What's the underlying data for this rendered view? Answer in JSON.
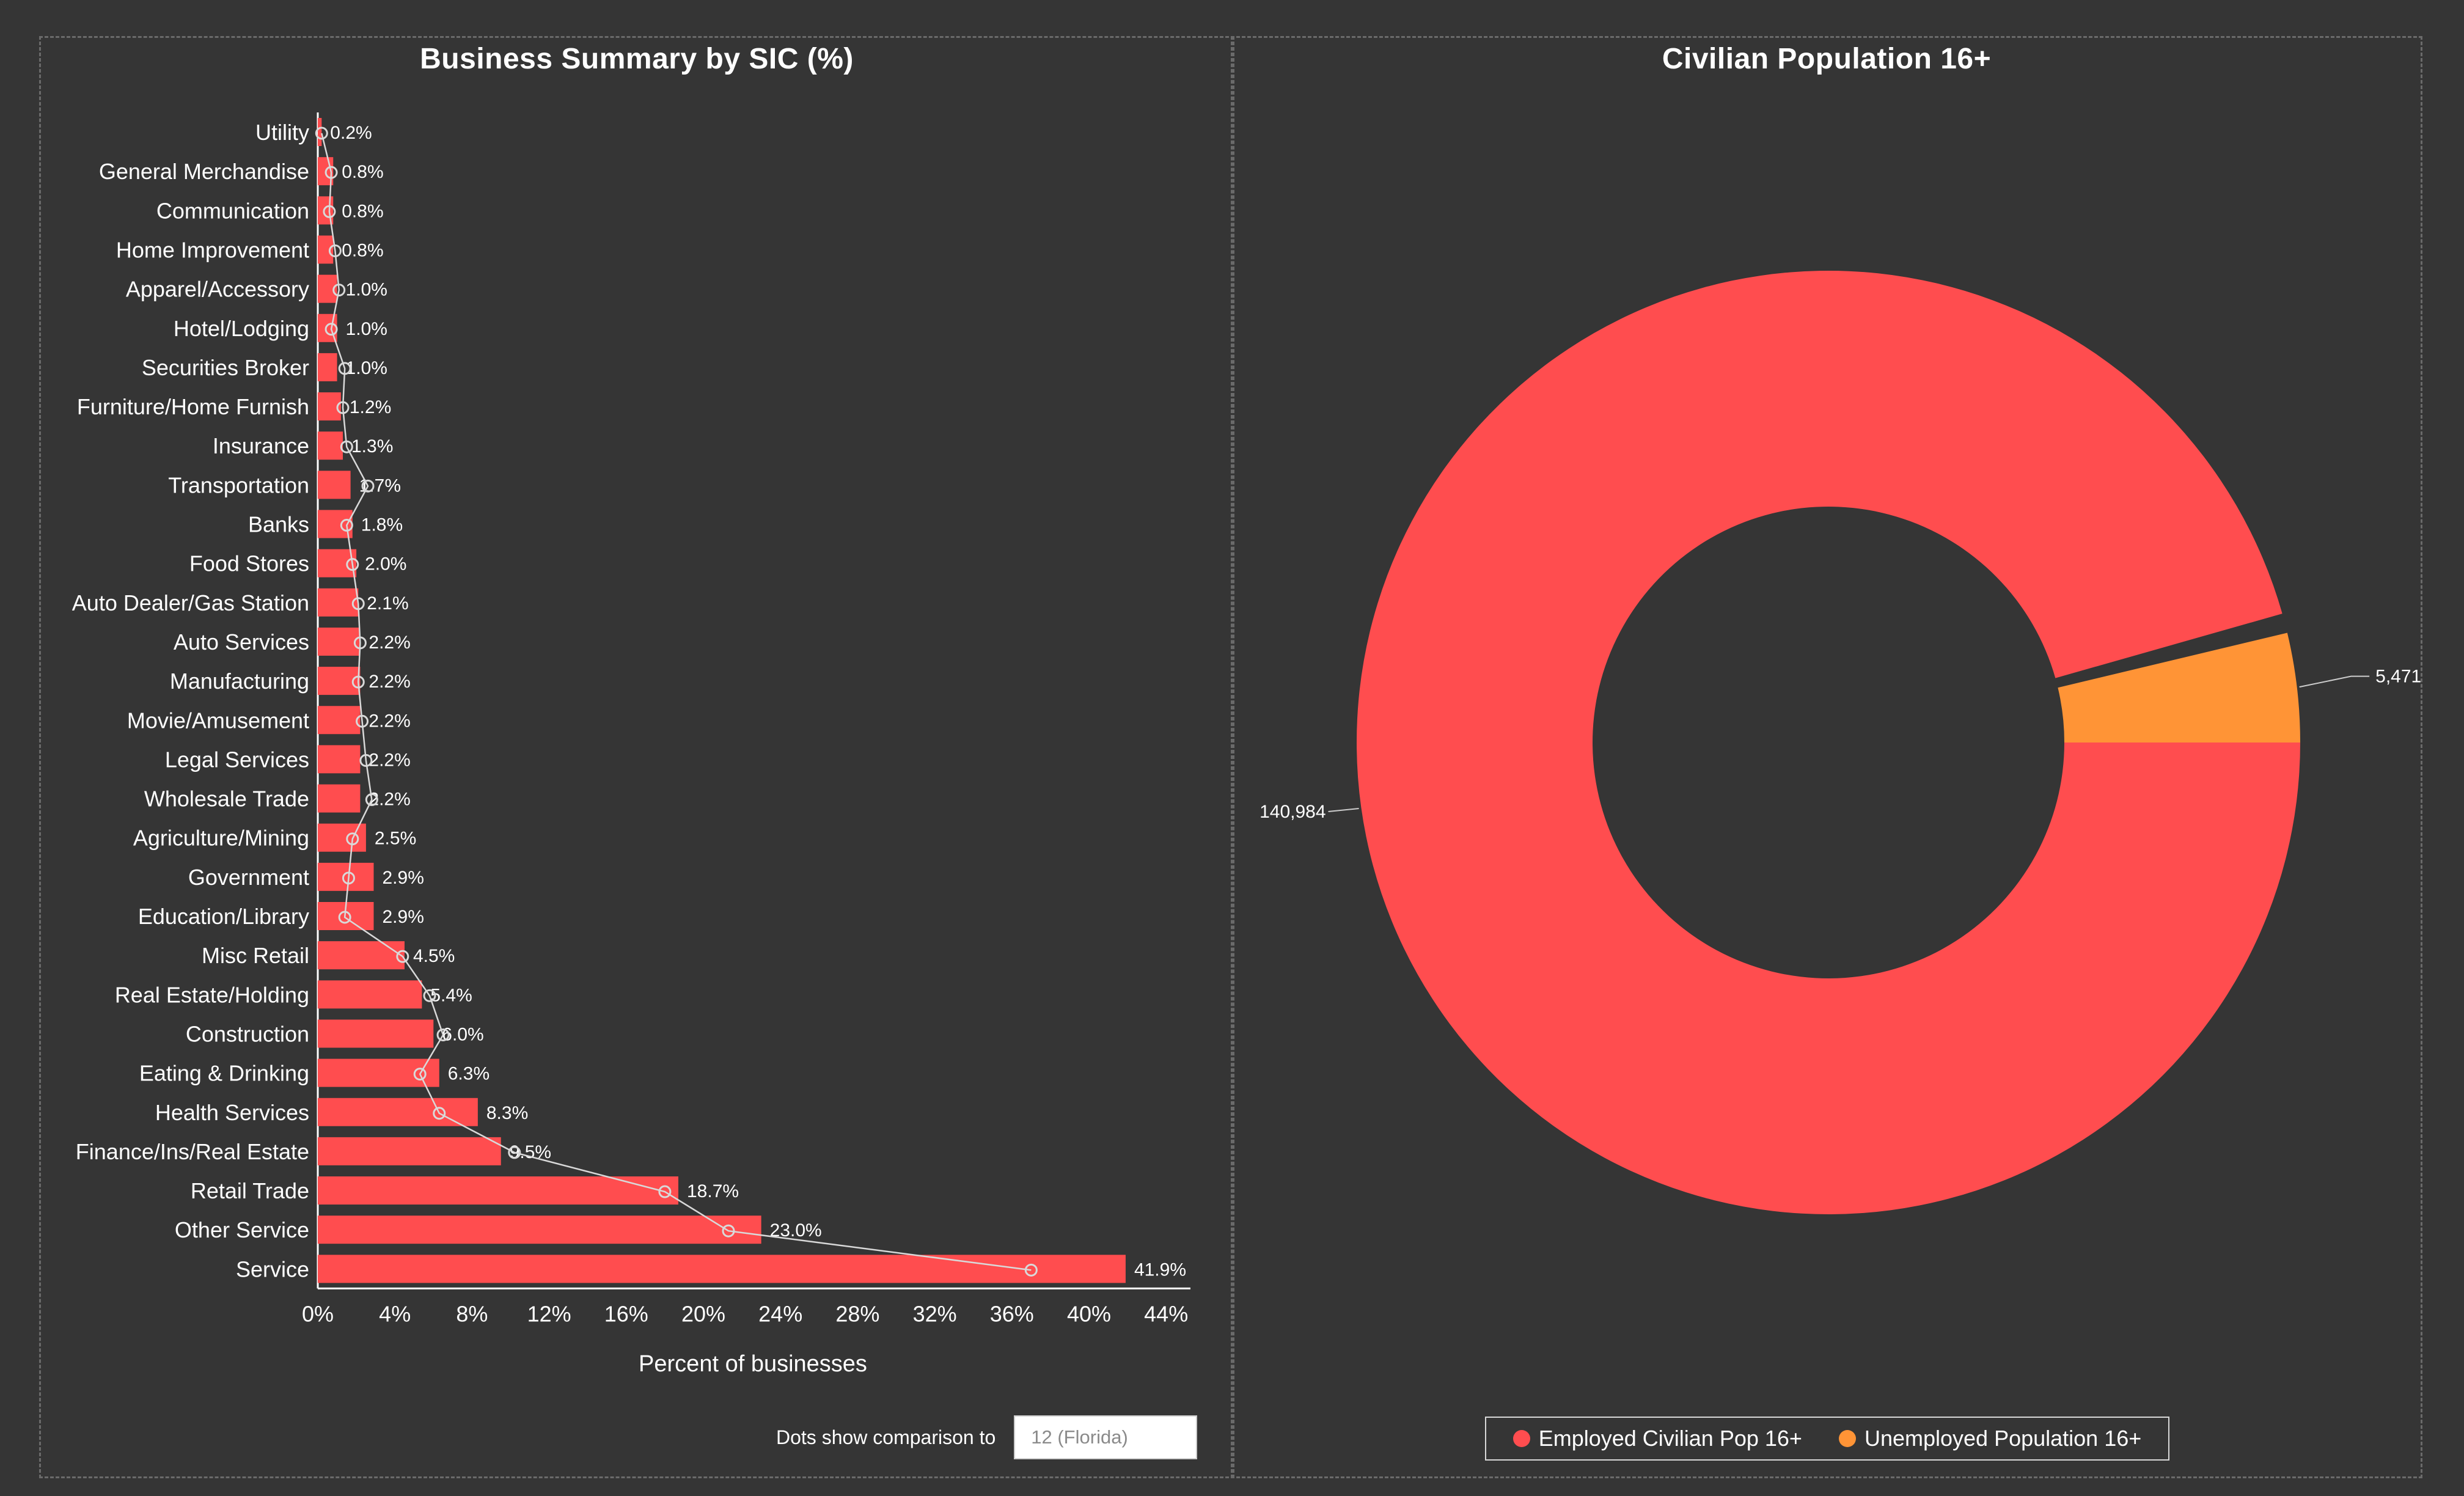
{
  "chart_data": [
    {
      "type": "bar",
      "orientation": "horizontal",
      "title": "Business Summary by SIC (%)",
      "xlabel": "Percent of businesses",
      "ylabel": "",
      "xlim": [
        0,
        46
      ],
      "x_ticks": [
        "0%",
        "4%",
        "8%",
        "12%",
        "16%",
        "20%",
        "24%",
        "28%",
        "32%",
        "36%",
        "40%",
        "44%"
      ],
      "x_tick_values": [
        0,
        4,
        8,
        12,
        16,
        20,
        24,
        28,
        32,
        36,
        40,
        44
      ],
      "categories": [
        "Utility",
        "General Merchandise",
        "Communication",
        "Home Improvement",
        "Apparel/Accessory",
        "Hotel/Lodging",
        "Securities Broker",
        "Furniture/Home Furnish",
        "Insurance",
        "Transportation",
        "Banks",
        "Food Stores",
        "Auto Dealer/Gas Station",
        "Auto Services",
        "Manufacturing",
        "Movie/Amusement",
        "Legal Services",
        "Wholesale Trade",
        "Agriculture/Mining",
        "Government",
        "Education/Library",
        "Misc Retail",
        "Real Estate/Holding",
        "Construction",
        "Eating & Drinking",
        "Health Services",
        "Finance/Ins/Real Estate",
        "Retail Trade",
        "Other Service",
        "Service"
      ],
      "values": [
        0.2,
        0.8,
        0.8,
        0.8,
        1.0,
        1.0,
        1.0,
        1.2,
        1.3,
        1.7,
        1.8,
        2.0,
        2.1,
        2.2,
        2.2,
        2.2,
        2.2,
        2.2,
        2.5,
        2.9,
        2.9,
        4.5,
        5.4,
        6.0,
        6.3,
        8.3,
        9.5,
        18.7,
        23.0,
        41.9
      ],
      "value_labels": [
        "0.2%",
        "0.8%",
        "0.8%",
        "0.8%",
        "1.0%",
        "1.0%",
        "1.0%",
        "1.2%",
        "1.3%",
        "1.7%",
        "1.8%",
        "2.0%",
        "2.1%",
        "2.2%",
        "2.2%",
        "2.2%",
        "2.2%",
        "2.2%",
        "2.5%",
        "2.9%",
        "2.9%",
        "4.5%",
        "5.4%",
        "6.0%",
        "6.3%",
        "8.3%",
        "9.5%",
        "18.7%",
        "23.0%",
        "41.9%"
      ],
      "comparison_values": [
        0.2,
        0.7,
        0.6,
        0.9,
        1.1,
        0.7,
        1.4,
        1.3,
        1.5,
        2.6,
        1.5,
        1.8,
        2.1,
        2.2,
        2.1,
        2.3,
        2.5,
        2.8,
        1.8,
        1.6,
        1.4,
        4.4,
        5.8,
        6.5,
        5.3,
        6.3,
        10.2,
        18.0,
        21.3,
        37.0
      ],
      "bar_color": "#ff4d4f",
      "comparison_color": "#d9d9d9"
    },
    {
      "type": "pie",
      "variant": "donut",
      "title": "Civilian Population 16+",
      "labels": [
        "Employed Civilian Pop 16+",
        "Unemployed Population 16+"
      ],
      "values": [
        140984,
        5471
      ],
      "value_labels": [
        "140,984",
        "5,471"
      ],
      "colors": [
        "#ff4d4f",
        "#ff9436"
      ],
      "legend_position": "bottom"
    }
  ],
  "comparison": {
    "label": "Dots show comparison to",
    "selected": "12 (Florida)"
  }
}
